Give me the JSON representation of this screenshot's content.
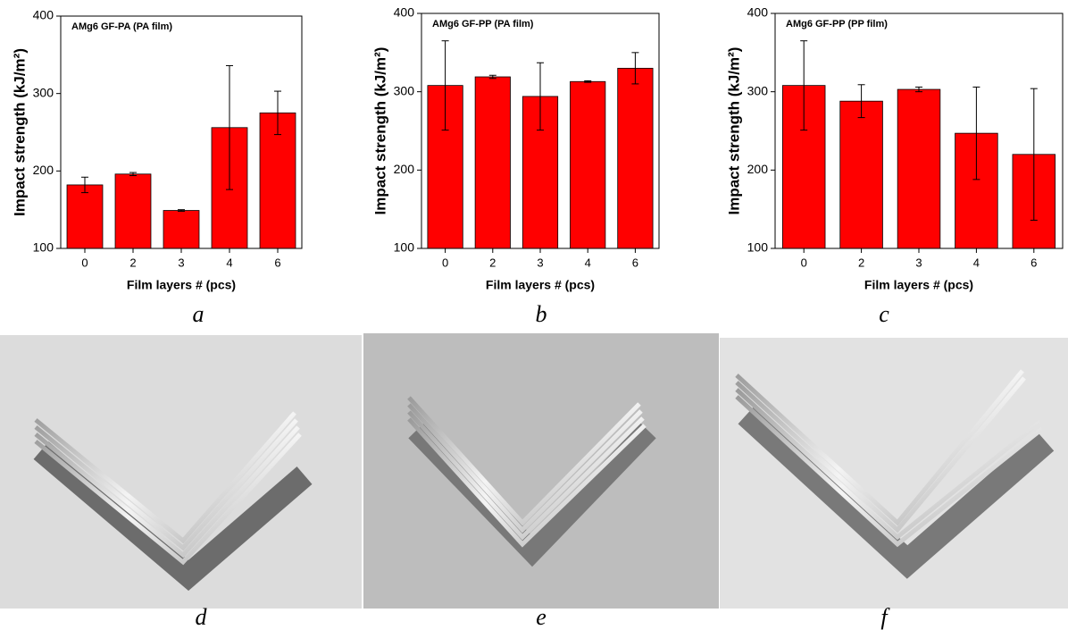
{
  "chart_data": [
    {
      "type": "bar",
      "annotation": "AMg6 GF-PA (PA film)",
      "xlabel": "Film layers # (pcs)",
      "ylabel": "Impact strength (kJ/m²)",
      "categories": [
        "0",
        "2",
        "3",
        "4",
        "6"
      ],
      "values": [
        182,
        196,
        149,
        256,
        275
      ],
      "errors": [
        10,
        2,
        1,
        80,
        28
      ],
      "color": "#ff0000",
      "ylim": [
        100,
        400
      ],
      "yticks": [
        100,
        200,
        300,
        400
      ]
    },
    {
      "type": "bar",
      "annotation": "AMg6 GF-PP (PA film)",
      "xlabel": "Film layers # (pcs)",
      "ylabel": "Impact strength (kJ/m²)",
      "categories": [
        "0",
        "2",
        "3",
        "4",
        "6"
      ],
      "values": [
        308,
        319,
        294,
        313,
        330
      ],
      "errors": [
        57,
        2,
        43,
        1,
        20
      ],
      "color": "#ff0000",
      "ylim": [
        100,
        400
      ],
      "yticks": [
        100,
        200,
        300,
        400
      ]
    },
    {
      "type": "bar",
      "annotation": "AMg6 GF-PP (PP film)",
      "xlabel": "Film layers # (pcs)",
      "ylabel": "Impact strength (kJ/m²)",
      "categories": [
        "0",
        "2",
        "3",
        "4",
        "6"
      ],
      "values": [
        308,
        288,
        303,
        247,
        220
      ],
      "errors": [
        57,
        21,
        3,
        59,
        84
      ],
      "color": "#ff0000",
      "ylim": [
        100,
        400
      ],
      "yticks": [
        100,
        200,
        300,
        400
      ]
    }
  ],
  "panels": {
    "labels": [
      "a",
      "b",
      "c",
      "d",
      "e",
      "f"
    ]
  }
}
